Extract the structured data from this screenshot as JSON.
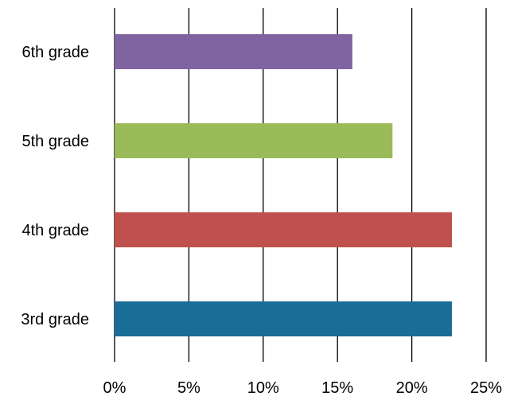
{
  "chart_data": {
    "type": "bar",
    "orientation": "horizontal",
    "categories": [
      "3rd grade",
      "4th grade",
      "5th grade",
      "6th grade"
    ],
    "values": [
      22.7,
      22.7,
      18.7,
      16.0
    ],
    "colors": [
      "#1A6D97",
      "#C0504D",
      "#9BBB59",
      "#8064A2"
    ],
    "xlim": [
      0,
      25
    ],
    "x_ticks": [
      0,
      5,
      10,
      15,
      20,
      25
    ],
    "x_tick_labels": [
      "0%",
      "5%",
      "10%",
      "15%",
      "20%",
      "25%"
    ],
    "title": "",
    "xlabel": "",
    "ylabel": "",
    "grid": true,
    "legend": "none"
  }
}
